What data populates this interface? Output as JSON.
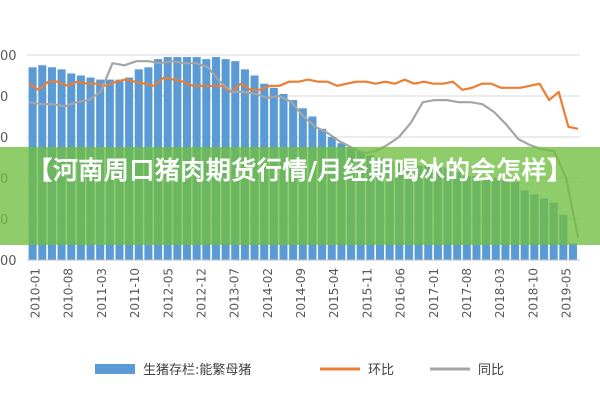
{
  "overlay": {
    "title": "【河南周口猪肉期货行情/月经期喝冰的会怎样】"
  },
  "chart_data": {
    "type": "bar+line",
    "ylim": [
      0,
      100
    ],
    "yticks": [
      {
        "value": 0,
        "label": "00"
      },
      {
        "value": 20,
        "label": "0"
      },
      {
        "value": 40,
        "label": "0"
      },
      {
        "value": 60,
        "label": "0"
      },
      {
        "value": 80,
        "label": "0"
      },
      {
        "value": 100,
        "label": "00"
      }
    ],
    "x_tick_labels": [
      "2010-01",
      "2010-08",
      "2011-03",
      "2011-10",
      "2012-05",
      "2012-12",
      "2013-07",
      "2014-02",
      "2014-09",
      "2015-04",
      "2015-11",
      "2016-06",
      "2017-01",
      "2017-08",
      "2018-03",
      "2018-10",
      "2019-05"
    ],
    "series": [
      {
        "name": "生猪存栏:能繁母猪",
        "kind": "bar",
        "color": "#5b9bd5",
        "values": [
          94,
          95,
          94,
          93,
          91,
          90,
          89,
          88,
          88,
          88,
          89,
          93,
          94,
          98,
          99,
          99,
          99,
          99,
          98,
          99,
          98,
          97,
          93,
          90,
          86,
          84,
          81,
          78,
          74,
          70,
          64,
          60,
          57,
          55,
          53,
          51,
          50,
          48,
          47,
          47,
          46,
          46,
          45,
          45,
          43,
          41,
          41,
          40,
          40,
          39,
          38,
          34,
          32,
          30,
          28,
          22,
          8
        ]
      },
      {
        "name": "环比",
        "kind": "line",
        "color": "#ed7d31",
        "values": [
          86,
          83,
          87,
          87,
          85,
          87,
          86,
          86,
          85,
          87,
          88,
          87,
          86,
          85,
          89,
          88,
          87,
          85,
          85,
          85,
          85,
          82,
          86,
          83,
          83,
          85,
          85,
          87,
          87,
          88,
          87,
          87,
          85,
          86,
          87,
          87,
          86,
          87,
          86,
          88,
          86,
          87,
          86,
          86,
          87,
          83,
          84,
          86,
          86,
          84,
          84,
          84,
          85,
          86,
          78,
          82,
          65,
          64
        ]
      },
      {
        "name": "同比",
        "kind": "line",
        "color": "#a5a5a5",
        "values": [
          77,
          76,
          76,
          75,
          77,
          78,
          82,
          96,
          95,
          97,
          97,
          96,
          97,
          96,
          96,
          94,
          87,
          82,
          82,
          81,
          79,
          80,
          77,
          70,
          65,
          62,
          58,
          55,
          52,
          53,
          56,
          60,
          67,
          77,
          78,
          78,
          77,
          77,
          76,
          72,
          66,
          59,
          56,
          54,
          53,
          40,
          11
        ]
      }
    ],
    "legend": {
      "position": "bottom"
    }
  }
}
